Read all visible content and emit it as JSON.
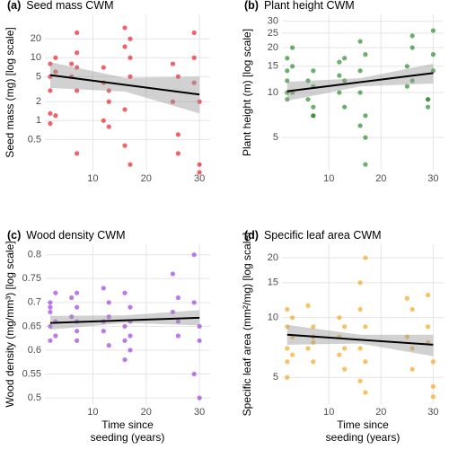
{
  "chart_data": [
    {
      "type": "scatter",
      "panel_label": "(a)",
      "title": "Seed mass CWM",
      "y_label": "Seed mass (mg) [log scale]",
      "log_y": true,
      "grid": true,
      "color": "#e8212a",
      "xlim": [
        1,
        32
      ],
      "xticks": [
        10,
        20,
        30
      ],
      "ylim": [
        0.16,
        49
      ],
      "yticks": [
        0.5,
        1,
        2,
        5,
        10,
        20
      ],
      "x": [
        2,
        2,
        2,
        2,
        3,
        3,
        3,
        6,
        6,
        7,
        7,
        7,
        7,
        12,
        12,
        12,
        13,
        13,
        13,
        16,
        16,
        16,
        17,
        17,
        17,
        17,
        25,
        25,
        26,
        26,
        26,
        29,
        29,
        30,
        30,
        30,
        2,
        7,
        16,
        29
      ],
      "y": [
        8,
        5,
        3,
        1.3,
        10,
        6,
        1.2,
        8,
        5,
        25,
        12,
        3,
        0.3,
        7,
        4,
        1,
        3,
        2,
        0.8,
        30,
        15,
        0.4,
        20,
        10,
        5,
        0.2,
        8,
        2,
        5,
        0.6,
        0.3,
        25,
        10,
        2,
        0.2,
        0.15,
        0.9,
        7,
        1.5,
        4
      ],
      "fit": {
        "x": [
          2,
          30
        ],
        "y": [
          5.3,
          2.6
        ]
      },
      "band": {
        "x": [
          2,
          16,
          30
        ],
        "lower": [
          3.3,
          2.9,
          1.3
        ],
        "upper": [
          8.5,
          4.8,
          5
        ]
      }
    },
    {
      "type": "scatter",
      "panel_label": "(b)",
      "title": "Plant height CWM",
      "y_label": "Plant height (m) [log scale]",
      "log_y": true,
      "grid": true,
      "color": "#2e8b2e",
      "xlim": [
        1,
        32
      ],
      "xticks": [
        10,
        20,
        30
      ],
      "ylim": [
        3,
        33.4
      ],
      "yticks": [
        5,
        10,
        15,
        20,
        25,
        30
      ],
      "x": [
        2,
        2,
        2,
        2,
        3,
        3,
        3,
        6,
        6,
        7,
        7,
        7,
        7,
        12,
        12,
        12,
        13,
        13,
        13,
        16,
        16,
        16,
        17,
        17,
        17,
        17,
        25,
        25,
        26,
        26,
        26,
        29,
        29,
        30,
        30,
        30,
        2,
        7,
        16,
        29
      ],
      "y": [
        17,
        14,
        12,
        9,
        20,
        15,
        10,
        12,
        9,
        8,
        7,
        14,
        11,
        16,
        13,
        10,
        17,
        12,
        8,
        14,
        10,
        6,
        7,
        5,
        3.3,
        18,
        15,
        11,
        24,
        20,
        12,
        9,
        8,
        26,
        18,
        14,
        10,
        7,
        22,
        9
      ],
      "fit": {
        "x": [
          2,
          30
        ],
        "y": [
          10.2,
          13.5
        ]
      },
      "band": {
        "x": [
          2,
          16,
          30
        ],
        "lower": [
          8.8,
          11,
          11.5
        ],
        "upper": [
          11.8,
          12.5,
          15.6
        ]
      }
    },
    {
      "type": "scatter",
      "panel_label": "(c)",
      "title": "Wood density CWM",
      "y_label": "Wood density (mg/mm³) [log scale]",
      "x_label": [
        "Time since",
        "seeding (years)"
      ],
      "log_y": false,
      "grid": true,
      "color": "#a040e0",
      "xlim": [
        1,
        32
      ],
      "xticks": [
        10,
        20,
        30
      ],
      "ylim": [
        0.487,
        0.822
      ],
      "yticks": [
        0.5,
        0.55,
        0.6,
        0.65,
        0.7,
        0.75,
        0.8
      ],
      "x": [
        2,
        2,
        2,
        2,
        3,
        3,
        3,
        6,
        6,
        7,
        7,
        7,
        7,
        12,
        12,
        12,
        13,
        13,
        13,
        16,
        16,
        16,
        17,
        17,
        17,
        17,
        25,
        25,
        26,
        26,
        26,
        29,
        29,
        30,
        30,
        30,
        2,
        7,
        16,
        29
      ],
      "y": [
        0.7,
        0.68,
        0.65,
        0.62,
        0.72,
        0.66,
        0.63,
        0.71,
        0.67,
        0.72,
        0.64,
        0.62,
        0.69,
        0.73,
        0.66,
        0.64,
        0.7,
        0.61,
        0.67,
        0.72,
        0.65,
        0.58,
        0.69,
        0.63,
        0.6,
        0.66,
        0.76,
        0.68,
        0.71,
        0.66,
        0.63,
        0.8,
        0.7,
        0.65,
        0.62,
        0.5,
        0.69,
        0.66,
        0.62,
        0.55
      ],
      "fit": {
        "x": [
          2,
          30
        ],
        "y": [
          0.657,
          0.668
        ]
      },
      "band": {
        "x": [
          2,
          16,
          30
        ],
        "lower": [
          0.643,
          0.657,
          0.652
        ],
        "upper": [
          0.672,
          0.673,
          0.684
        ]
      }
    },
    {
      "type": "scatter",
      "panel_label": "(d)",
      "title": "Specific leaf area CWM",
      "y_label": "Specific leaf area (mm²/mg) [log scale]",
      "x_label": [
        "Time since",
        "seeding (years)"
      ],
      "log_y": true,
      "grid": true,
      "color": "#f5a623",
      "xlim": [
        1,
        32
      ],
      "xticks": [
        10,
        20,
        30
      ],
      "ylim": [
        3.67,
        23.4
      ],
      "yticks": [
        5,
        10,
        15,
        20
      ],
      "x": [
        2,
        2,
        2,
        2,
        3,
        3,
        3,
        6,
        6,
        7,
        7,
        7,
        7,
        12,
        12,
        12,
        13,
        13,
        13,
        16,
        16,
        16,
        17,
        17,
        17,
        17,
        25,
        25,
        26,
        26,
        26,
        29,
        29,
        30,
        30,
        30,
        2,
        7,
        16,
        29
      ],
      "y": [
        11,
        9,
        7,
        6,
        10,
        8,
        6.5,
        11.5,
        7,
        9,
        8,
        6,
        7.5,
        10,
        8,
        6.5,
        9,
        7,
        5.5,
        15,
        11,
        7,
        20,
        9,
        6,
        4.2,
        12.5,
        8,
        11,
        7,
        5.5,
        13,
        9,
        6,
        4.5,
        4,
        5,
        8,
        4.8,
        7.5
      ],
      "fit": {
        "x": [
          2,
          30
        ],
        "y": [
          8.2,
          7.3
        ]
      },
      "band": {
        "x": [
          2,
          16,
          30
        ],
        "lower": [
          7.3,
          7.4,
          6.4
        ],
        "upper": [
          9.2,
          8.2,
          8.2
        ]
      }
    }
  ]
}
